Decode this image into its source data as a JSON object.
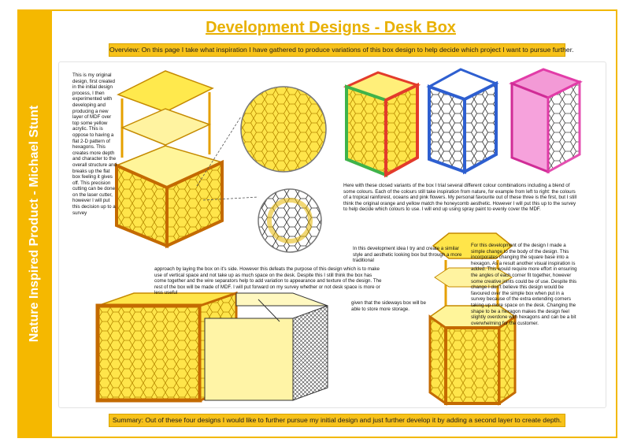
{
  "document": {
    "title": "Development Designs - Desk Box",
    "side_label": "Nature Inspired Product - Michael Stunt",
    "overview": "Overview: On this page I take what inspiration I have gathered to produce variations of this box design to help decide which project I want to pursue further.",
    "summary": "Summary: Out of these four designs I would like to further pursue my initial design and just further develop it by adding a second layer to create depth."
  },
  "notes": {
    "initial_design": "This is my original design, first created in the initial design process, I then experimented with developing and producing a new layer of MDF over top some yellow acrylic. This is oppose to having a flat 2-D pattern of hexagons. This creates more depth and character to the overall structure and breaks up the flat box feeling it gives off. This precision cutting can be done on the laser cutter, however I will put this decision up to a survey",
    "colour_variants": "Here with these closed variants of the box I trial several different colour combinations including a blend of some colours. Each of the colours still take inspiration from nature, for example from left to right: the colours of a tropical rainforest, oceans and pink flowers. My personal favourite out of these three is the first, but I still think the original orange and yellow match the honeycomb aesthetic. However I will put this up to the survey to help decide which colours to use. I will end up using spray paint to evenly cover the MDF.",
    "sideways_box_1": "In this development idea I try and create a similar style and aesthetic looking box but through a more traditional",
    "sideways_box_2": "approach by laying the box on it's side. However this defeats the purpose of this design which is to make use of vertical space and not take up as much space on the desk. Despite this I still think the box has come together and the wire separators help to add variation to appearance and texture of the design. The rest of the box will be made of MDF. I will put forward on my survey whether or not desk space is more or less useful",
    "sideways_box_3": "given that the sideways box will be able to store more storage.",
    "hexagon_design": "For this development of the design I made a simple change to the body of the design. This incorporates changing the square base into a hexagon. As a result another visual inspiration is added. This would require more effort in ensuring the angles of each corner fit together, however some creative joints could be of use. Despite this change I don't believe this design would be favoured over the simple box when put in a survey because of the extra extending corners taking up more space on the desk. Changing the shape to be a hexagon makes the design feel slightly overdone with hexagons and can be a bit overwhelming for the customer."
  },
  "colors": {
    "accent": "#f5b800",
    "yellow": "#ffe033",
    "orange": "#f0a020",
    "green": "#3fb34a",
    "blue": "#2e5fd0",
    "pink": "#e23ca8",
    "red": "#e33b2b"
  },
  "figures": [
    "original-tower-box",
    "hexagon-detail-magnifier",
    "tropical-rainforest-variant",
    "ocean-variant",
    "pink-flower-variant",
    "sideways-box",
    "hexagon-tower-box"
  ]
}
